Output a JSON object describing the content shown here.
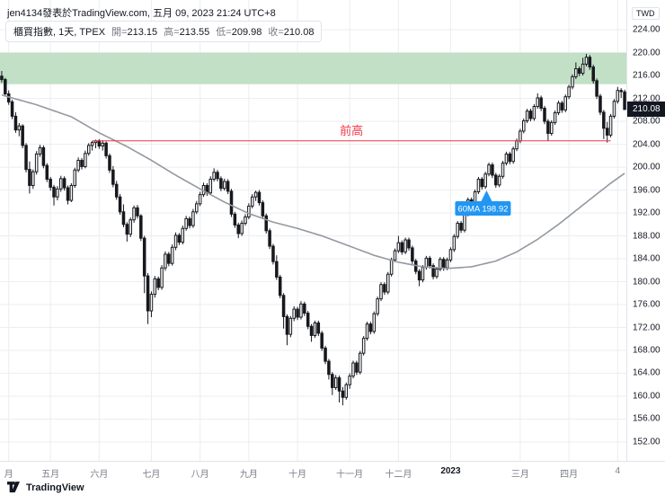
{
  "header": {
    "attribution": "jen4134發表於TradingView.com, 五月 09, 2023 21:24 UTC+8"
  },
  "legend": {
    "symbol": "櫃買指數, 1天, TPEX",
    "ohlc": [
      {
        "label": "開",
        "value": "213.15"
      },
      {
        "label": "高",
        "value": "213.55"
      },
      {
        "label": "低",
        "value": "209.98"
      },
      {
        "label": "收",
        "value": "210.08"
      }
    ]
  },
  "price_axis": {
    "currency": "TWD",
    "last_price": "210.08",
    "ticks": [
      "224.00",
      "220.00",
      "216.00",
      "212.00",
      "208.00",
      "204.00",
      "200.00",
      "196.00",
      "192.00",
      "188.00",
      "184.00",
      "180.00",
      "176.00",
      "172.00",
      "168.00",
      "164.00",
      "160.00",
      "156.00",
      "152.00"
    ]
  },
  "time_axis": {
    "ticks": [
      {
        "label": "月",
        "i": 2
      },
      {
        "label": "五月",
        "i": 14
      },
      {
        "label": "六月",
        "i": 28
      },
      {
        "label": "七月",
        "i": 43
      },
      {
        "label": "八月",
        "i": 57
      },
      {
        "label": "九月",
        "i": 71
      },
      {
        "label": "十月",
        "i": 85
      },
      {
        "label": "十一月",
        "i": 100
      },
      {
        "label": "十二月",
        "i": 114
      },
      {
        "label": "2023",
        "i": 129,
        "major": true
      },
      {
        "label": "三月",
        "i": 149
      },
      {
        "label": "四月",
        "i": 163
      },
      {
        "label": "4",
        "i": 177
      }
    ]
  },
  "annotations": {
    "zone": {
      "price_from": 214.5,
      "price_to": 220.0,
      "color": "#c2e0c6"
    },
    "prev_high": {
      "price": 204.6,
      "label": "前高",
      "color": "#f23645",
      "from_index": 26,
      "to_index": 175
    },
    "ma_callout": {
      "text": "60MA 198.92",
      "color": "#2196f3",
      "index": 137,
      "price": 192.8
    }
  },
  "footer": {
    "brand": "TradingView"
  },
  "chart_data": {
    "type": "candlestick",
    "title": "櫃買指數 (TPEX), 1天",
    "currency": "TWD",
    "ylim": [
      148.7,
      229.2
    ],
    "y_ticks": [
      224,
      220,
      216,
      212,
      208,
      204,
      200,
      196,
      192,
      188,
      184,
      180,
      176,
      172,
      168,
      164,
      160,
      156,
      152
    ],
    "last_ohlc": {
      "open": 213.15,
      "high": 213.55,
      "low": 209.98,
      "close": 210.08
    },
    "colors": {
      "up": "#ffffff",
      "down": "#16181d",
      "border": "#16181d",
      "ma": "#9598a1",
      "grid": "#ebedf0"
    },
    "ma60": [
      [
        0,
        212.6
      ],
      [
        10,
        210.9
      ],
      [
        20,
        208.8
      ],
      [
        28,
        206.0
      ],
      [
        36,
        203.6
      ],
      [
        43,
        201.2
      ],
      [
        50,
        198.6
      ],
      [
        57,
        196.2
      ],
      [
        64,
        193.9
      ],
      [
        71,
        191.9
      ],
      [
        78,
        190.4
      ],
      [
        85,
        189.3
      ],
      [
        92,
        188.0
      ],
      [
        100,
        186.2
      ],
      [
        107,
        184.6
      ],
      [
        114,
        183.4
      ],
      [
        121,
        182.6
      ],
      [
        128,
        182.3
      ],
      [
        135,
        182.6
      ],
      [
        142,
        183.6
      ],
      [
        148,
        185.2
      ],
      [
        154,
        187.4
      ],
      [
        160,
        190.0
      ],
      [
        166,
        192.9
      ],
      [
        171,
        195.3
      ],
      [
        175,
        197.2
      ],
      [
        179,
        198.92
      ]
    ],
    "candles": [
      [
        215.9,
        216.8,
        214.8,
        215.3
      ],
      [
        215.3,
        215.6,
        212.4,
        212.8
      ],
      [
        212.8,
        213.4,
        210.9,
        211.4
      ],
      [
        211.4,
        211.8,
        208.4,
        208.9
      ],
      [
        208.9,
        209.6,
        206.0,
        206.5
      ],
      [
        206.5,
        207.7,
        205.4,
        207.2
      ],
      [
        207.2,
        207.5,
        203.3,
        203.8
      ],
      [
        203.8,
        204.2,
        199.1,
        199.6
      ],
      [
        199.6,
        201.0,
        195.4,
        196.8
      ],
      [
        196.8,
        199.6,
        196.2,
        199.2
      ],
      [
        199.2,
        202.8,
        198.7,
        202.3
      ],
      [
        202.3,
        203.9,
        201.8,
        203.4
      ],
      [
        203.4,
        203.8,
        199.8,
        200.3
      ],
      [
        200.3,
        200.7,
        197.4,
        197.9
      ],
      [
        197.9,
        198.3,
        195.9,
        196.5
      ],
      [
        196.5,
        196.9,
        193.3,
        194.8
      ],
      [
        194.8,
        196.7,
        194.2,
        196.2
      ],
      [
        196.2,
        198.5,
        195.7,
        198.0
      ],
      [
        198.0,
        198.4,
        195.9,
        196.4
      ],
      [
        196.4,
        196.8,
        193.5,
        194.2
      ],
      [
        194.2,
        197.2,
        193.9,
        196.8
      ],
      [
        196.8,
        199.9,
        196.4,
        199.5
      ],
      [
        199.5,
        201.7,
        199.1,
        201.2
      ],
      [
        201.2,
        201.6,
        199.6,
        200.1
      ],
      [
        200.1,
        202.9,
        199.8,
        202.4
      ],
      [
        202.4,
        204.2,
        202.0,
        203.8
      ],
      [
        203.8,
        204.6,
        202.9,
        204.3
      ],
      [
        204.3,
        204.8,
        203.3,
        204.6
      ],
      [
        204.6,
        204.9,
        203.2,
        203.7
      ],
      [
        203.7,
        204.7,
        202.9,
        204.2
      ],
      [
        204.2,
        204.5,
        201.5,
        202.0
      ],
      [
        202.0,
        202.4,
        199.0,
        199.5
      ],
      [
        199.5,
        200.2,
        196.5,
        197.0
      ],
      [
        197.0,
        197.6,
        194.3,
        194.8
      ],
      [
        194.8,
        195.3,
        191.7,
        192.2
      ],
      [
        192.2,
        193.5,
        189.5,
        190.0
      ],
      [
        190.0,
        190.4,
        187.0,
        188.3
      ],
      [
        188.3,
        191.2,
        187.8,
        190.8
      ],
      [
        190.8,
        193.3,
        190.3,
        192.9
      ],
      [
        192.9,
        193.4,
        191.0,
        191.5
      ],
      [
        191.5,
        191.8,
        187.1,
        187.6
      ],
      [
        187.6,
        188.0,
        178.0,
        181.0
      ],
      [
        181.0,
        181.5,
        172.6,
        174.9
      ],
      [
        174.9,
        178.3,
        173.8,
        177.8
      ],
      [
        177.8,
        181.0,
        177.2,
        180.5
      ],
      [
        180.5,
        180.9,
        178.5,
        179.0
      ],
      [
        179.0,
        182.9,
        178.6,
        182.4
      ],
      [
        182.4,
        185.3,
        181.9,
        184.8
      ],
      [
        184.8,
        185.2,
        182.7,
        183.2
      ],
      [
        183.2,
        186.5,
        182.8,
        186.0
      ],
      [
        186.0,
        188.6,
        185.5,
        188.1
      ],
      [
        188.1,
        188.5,
        186.4,
        186.9
      ],
      [
        186.9,
        189.8,
        186.5,
        189.3
      ],
      [
        189.3,
        191.5,
        188.9,
        191.0
      ],
      [
        191.0,
        191.4,
        189.3,
        189.8
      ],
      [
        189.8,
        192.7,
        189.4,
        192.2
      ],
      [
        192.2,
        194.1,
        191.8,
        193.6
      ],
      [
        193.6,
        195.7,
        193.2,
        195.2
      ],
      [
        195.2,
        197.3,
        194.8,
        196.8
      ],
      [
        196.8,
        197.2,
        195.0,
        195.5
      ],
      [
        195.5,
        198.4,
        195.1,
        197.9
      ],
      [
        197.9,
        199.8,
        197.5,
        199.1
      ],
      [
        199.1,
        199.5,
        197.5,
        198.0
      ],
      [
        198.0,
        198.4,
        195.8,
        196.3
      ],
      [
        196.3,
        198.0,
        195.9,
        197.5
      ],
      [
        197.5,
        197.9,
        195.3,
        195.8
      ],
      [
        195.8,
        196.2,
        191.3,
        191.8
      ],
      [
        191.8,
        192.2,
        189.4,
        189.9
      ],
      [
        189.9,
        190.3,
        187.6,
        188.4
      ],
      [
        188.4,
        190.7,
        188.0,
        190.2
      ],
      [
        190.2,
        191.8,
        189.8,
        191.3
      ],
      [
        191.3,
        193.7,
        190.9,
        193.2
      ],
      [
        193.2,
        195.3,
        192.8,
        194.8
      ],
      [
        194.8,
        195.9,
        194.1,
        195.6
      ],
      [
        195.6,
        196.0,
        193.3,
        193.8
      ],
      [
        193.8,
        194.2,
        191.0,
        191.5
      ],
      [
        191.5,
        191.9,
        188.4,
        188.9
      ],
      [
        188.9,
        189.3,
        185.7,
        186.2
      ],
      [
        186.2,
        186.6,
        183.0,
        183.5
      ],
      [
        183.5,
        184.6,
        180.3,
        180.8
      ],
      [
        180.8,
        181.2,
        177.1,
        177.6
      ],
      [
        177.6,
        178.0,
        171.8,
        173.9
      ],
      [
        173.9,
        174.3,
        168.9,
        170.8
      ],
      [
        170.8,
        174.0,
        170.3,
        173.6
      ],
      [
        173.6,
        175.7,
        173.1,
        175.2
      ],
      [
        175.2,
        175.6,
        173.3,
        173.8
      ],
      [
        173.8,
        176.6,
        173.4,
        176.1
      ],
      [
        176.1,
        176.5,
        174.0,
        174.5
      ],
      [
        174.5,
        174.9,
        171.7,
        172.2
      ],
      [
        172.2,
        172.6,
        169.5,
        170.6
      ],
      [
        170.6,
        173.2,
        170.2,
        172.8
      ],
      [
        172.8,
        173.2,
        170.5,
        171.0
      ],
      [
        171.0,
        171.4,
        167.9,
        168.4
      ],
      [
        168.4,
        168.8,
        165.6,
        166.1
      ],
      [
        166.1,
        166.5,
        162.9,
        163.8
      ],
      [
        163.8,
        164.2,
        160.2,
        161.5
      ],
      [
        161.5,
        163.7,
        161.1,
        163.2
      ],
      [
        163.2,
        163.6,
        158.9,
        160.9
      ],
      [
        160.9,
        161.6,
        158.4,
        159.8
      ],
      [
        159.8,
        162.4,
        159.4,
        162.0
      ],
      [
        162.0,
        164.0,
        161.3,
        163.5
      ],
      [
        163.5,
        166.2,
        163.1,
        165.8
      ],
      [
        165.8,
        166.2,
        163.7,
        164.2
      ],
      [
        164.2,
        167.9,
        163.8,
        167.5
      ],
      [
        167.5,
        170.5,
        167.1,
        170.1
      ],
      [
        170.1,
        173.0,
        169.7,
        172.6
      ],
      [
        172.6,
        173.0,
        170.8,
        171.3
      ],
      [
        171.3,
        174.8,
        170.9,
        174.4
      ],
      [
        174.4,
        177.4,
        174.0,
        177.0
      ],
      [
        177.0,
        179.9,
        176.6,
        179.5
      ],
      [
        179.5,
        179.9,
        177.7,
        178.2
      ],
      [
        178.2,
        181.7,
        177.8,
        181.3
      ],
      [
        181.3,
        184.2,
        180.9,
        183.8
      ],
      [
        183.8,
        185.8,
        183.4,
        185.4
      ],
      [
        185.4,
        188.0,
        185.0,
        186.8
      ],
      [
        186.8,
        187.2,
        184.7,
        185.2
      ],
      [
        185.2,
        187.7,
        184.8,
        187.3
      ],
      [
        187.3,
        187.7,
        185.4,
        185.9
      ],
      [
        185.9,
        186.3,
        183.1,
        183.6
      ],
      [
        183.6,
        184.0,
        181.3,
        181.8
      ],
      [
        181.8,
        182.2,
        179.2,
        180.3
      ],
      [
        180.3,
        182.9,
        179.9,
        182.5
      ],
      [
        182.5,
        184.5,
        182.1,
        184.1
      ],
      [
        184.1,
        184.5,
        182.3,
        182.8
      ],
      [
        182.8,
        183.2,
        180.4,
        180.9
      ],
      [
        180.9,
        182.6,
        180.5,
        182.2
      ],
      [
        182.2,
        184.3,
        181.8,
        183.9
      ],
      [
        183.9,
        184.3,
        181.9,
        182.4
      ],
      [
        182.4,
        184.2,
        182.0,
        183.8
      ],
      [
        183.8,
        186.0,
        183.4,
        185.6
      ],
      [
        185.6,
        188.3,
        185.2,
        187.9
      ],
      [
        187.9,
        190.6,
        187.5,
        190.2
      ],
      [
        190.2,
        190.6,
        188.5,
        189.0
      ],
      [
        189.0,
        192.2,
        188.6,
        191.8
      ],
      [
        191.8,
        194.7,
        191.4,
        194.3
      ],
      [
        194.3,
        194.7,
        192.6,
        193.1
      ],
      [
        193.1,
        196.1,
        192.7,
        195.7
      ],
      [
        195.7,
        198.3,
        195.3,
        197.9
      ],
      [
        197.9,
        198.3,
        196.1,
        196.6
      ],
      [
        196.6,
        199.2,
        196.2,
        198.8
      ],
      [
        198.8,
        200.8,
        198.4,
        200.4
      ],
      [
        200.4,
        200.8,
        198.1,
        198.6
      ],
      [
        198.6,
        199.0,
        196.4,
        196.9
      ],
      [
        196.9,
        198.8,
        196.5,
        198.4
      ],
      [
        198.4,
        201.1,
        198.0,
        200.7
      ],
      [
        200.7,
        202.7,
        200.3,
        202.3
      ],
      [
        202.3,
        202.7,
        200.5,
        201.0
      ],
      [
        201.0,
        203.6,
        200.6,
        203.2
      ],
      [
        203.2,
        205.0,
        202.8,
        204.6
      ],
      [
        204.6,
        206.7,
        204.2,
        206.3
      ],
      [
        206.3,
        208.5,
        205.9,
        208.1
      ],
      [
        208.1,
        210.2,
        207.7,
        209.8
      ],
      [
        209.8,
        210.2,
        208.0,
        208.5
      ],
      [
        208.5,
        211.0,
        208.1,
        210.6
      ],
      [
        210.6,
        212.9,
        210.2,
        212.1
      ],
      [
        212.1,
        212.5,
        209.8,
        210.3
      ],
      [
        210.3,
        210.7,
        207.5,
        208.0
      ],
      [
        208.0,
        208.4,
        204.6,
        205.9
      ],
      [
        205.9,
        208.2,
        205.5,
        207.8
      ],
      [
        207.8,
        209.9,
        207.4,
        209.5
      ],
      [
        209.5,
        211.6,
        209.1,
        211.2
      ],
      [
        211.2,
        211.6,
        209.5,
        210.0
      ],
      [
        210.0,
        212.7,
        209.6,
        212.3
      ],
      [
        212.3,
        214.4,
        211.9,
        214.0
      ],
      [
        214.0,
        216.2,
        213.6,
        215.8
      ],
      [
        215.8,
        218.3,
        215.4,
        217.2
      ],
      [
        217.2,
        217.6,
        215.9,
        216.4
      ],
      [
        216.4,
        219.1,
        216.0,
        218.0
      ],
      [
        218.0,
        219.8,
        217.6,
        219.2
      ],
      [
        219.2,
        219.6,
        217.0,
        217.5
      ],
      [
        217.5,
        217.9,
        214.6,
        215.1
      ],
      [
        215.1,
        215.5,
        211.9,
        212.4
      ],
      [
        212.4,
        212.8,
        209.1,
        209.6
      ],
      [
        209.6,
        210.0,
        204.9,
        206.8
      ],
      [
        206.8,
        207.9,
        204.3,
        205.6
      ],
      [
        205.6,
        209.3,
        205.2,
        208.9
      ],
      [
        208.9,
        211.9,
        208.5,
        211.5
      ],
      [
        211.5,
        214.0,
        211.1,
        213.4
      ],
      [
        213.4,
        213.8,
        212.1,
        213.2
      ],
      [
        213.15,
        213.55,
        209.98,
        210.08
      ]
    ]
  }
}
